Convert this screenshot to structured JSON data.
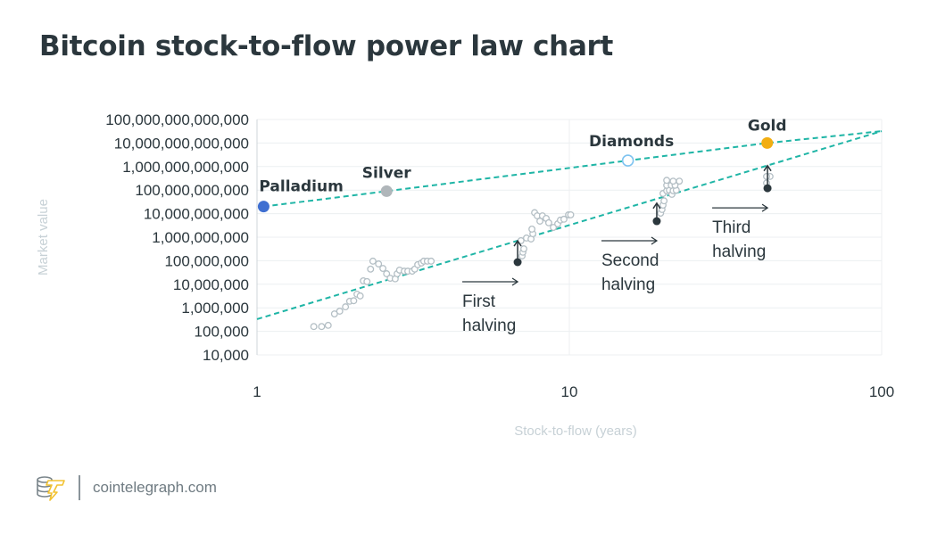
{
  "title": "Bitcoin stock-to-flow power law chart",
  "footer": {
    "logo": "cointelegraph",
    "site": "cointelegraph.com"
  },
  "chart_data": {
    "type": "scatter",
    "title": "Bitcoin stock-to-flow power law chart",
    "xlabel": "Stock-to-flow (years)",
    "ylabel": "Market value",
    "xscale": "log",
    "yscale": "log",
    "xlim": [
      1,
      100
    ],
    "ylim": [
      10000,
      100000000000000
    ],
    "grid": true,
    "xticks": [
      {
        "v": 1,
        "label": "1"
      },
      {
        "v": 10,
        "label": "10"
      },
      {
        "v": 100,
        "label": "100"
      }
    ],
    "yticks": [
      {
        "v": 10000.0,
        "label": "10,000"
      },
      {
        "v": 100000.0,
        "label": "100,000"
      },
      {
        "v": 1000000.0,
        "label": "1,000,000"
      },
      {
        "v": 10000000.0,
        "label": "10,000,000"
      },
      {
        "v": 100000000.0,
        "label": "100,000,000"
      },
      {
        "v": 1000000000.0,
        "label": "1,000,000,000"
      },
      {
        "v": 10000000000.0,
        "label": "10,000,000,000"
      },
      {
        "v": 100000000000.0,
        "label": "100,000,000,000"
      },
      {
        "v": 1000000000000.0,
        "label": "1,000,000,000,000"
      },
      {
        "v": 10000000000000.0,
        "label": "10,000,000,000,000"
      },
      {
        "v": 100000000000000.0,
        "label": "100,000,000,000,000"
      }
    ],
    "colors": {
      "trend": "#1fb5a6",
      "bitcoin": "#b4bfc5",
      "halving": "#2b373d",
      "palladium": "#3f6fd1",
      "silver": "#b0b6ba",
      "diamonds": "#7ec3f0",
      "gold": "#f2ae12",
      "text": "#2b373d",
      "axis_label": "#c7d1d6"
    },
    "commodities": [
      {
        "name": "Palladium",
        "x": 1.05,
        "y": 20000000000.0,
        "style": "filled",
        "color": "#3f6fd1"
      },
      {
        "name": "Silver",
        "x": 2.6,
        "y": 90000000000.0,
        "style": "filled",
        "color": "#b0b6ba"
      },
      {
        "name": "Diamonds",
        "x": 15.4,
        "y": 1800000000000.0,
        "style": "hollow",
        "color": "#7ec3f0"
      },
      {
        "name": "Gold",
        "x": 43,
        "y": 10000000000000.0,
        "style": "filled",
        "color": "#f2ae12"
      }
    ],
    "trend_lines": [
      {
        "points": [
          [
            1.05,
            20000000000.0
          ],
          [
            2.6,
            90000000000.0
          ],
          [
            15.4,
            1800000000000.0
          ],
          [
            43,
            10000000000000.0
          ],
          [
            100,
            32000000000000.0
          ]
        ]
      },
      {
        "points": [
          [
            1,
            330000.0
          ],
          [
            100,
            32000000000000.0
          ]
        ]
      }
    ],
    "bitcoin_points": [
      [
        1.52,
        160000.0
      ],
      [
        1.61,
        160000.0
      ],
      [
        1.69,
        180000.0
      ],
      [
        1.77,
        550000.0
      ],
      [
        1.84,
        720000.0
      ],
      [
        1.92,
        1100000.0
      ],
      [
        1.98,
        1900000.0
      ],
      [
        2.04,
        2000000.0
      ],
      [
        2.09,
        3800000.0
      ],
      [
        2.14,
        3200000.0
      ],
      [
        2.19,
        14000000.0
      ],
      [
        2.25,
        13000000.0
      ],
      [
        2.31,
        44000000.0
      ],
      [
        2.35,
        96000000.0
      ],
      [
        2.45,
        73000000.0
      ],
      [
        2.53,
        47000000.0
      ],
      [
        2.6,
        28000000.0
      ],
      [
        2.67,
        18000000.0
      ],
      [
        2.77,
        17000000.0
      ],
      [
        2.81,
        28000000.0
      ],
      [
        2.86,
        40000000.0
      ],
      [
        2.96,
        36000000.0
      ],
      [
        3.04,
        36000000.0
      ],
      [
        3.14,
        36000000.0
      ],
      [
        3.2,
        44000000.0
      ],
      [
        3.27,
        68000000.0
      ],
      [
        3.36,
        80000000.0
      ],
      [
        3.42,
        96000000.0
      ],
      [
        3.51,
        96000000.0
      ],
      [
        3.61,
        96000000.0
      ],
      [
        7.06,
        160000000.0
      ],
      [
        7.1,
        230000000.0
      ],
      [
        7.15,
        320000000.0
      ],
      [
        7.0,
        710000000.0
      ],
      [
        7.29,
        920000000.0
      ],
      [
        7.54,
        840000000.0
      ],
      [
        7.64,
        1400000000.0
      ],
      [
        7.59,
        2200000000.0
      ],
      [
        7.74,
        11000000000.0
      ],
      [
        7.89,
        8100000000.0
      ],
      [
        8.05,
        4800000000.0
      ],
      [
        8.2,
        8100000000.0
      ],
      [
        8.43,
        6300000000.0
      ],
      [
        8.59,
        4100000000.0
      ],
      [
        8.89,
        2600000000.0
      ],
      [
        9.18,
        3700000000.0
      ],
      [
        9.36,
        5300000000.0
      ],
      [
        9.61,
        5800000000.0
      ],
      [
        9.94,
        8900000000.0
      ],
      [
        10.1,
        8900000000.0
      ],
      [
        19.6,
        10500000000.0
      ],
      [
        19.8,
        15000000000.0
      ],
      [
        19.95,
        23000000000.0
      ],
      [
        20.1,
        35000000000.0
      ],
      [
        19.95,
        72000000000.0
      ],
      [
        20.5,
        94000000000.0
      ],
      [
        20.9,
        100000000000.0
      ],
      [
        21.3,
        66000000000.0
      ],
      [
        21.5,
        94000000000.0
      ],
      [
        22.0,
        100000000000.0
      ],
      [
        20.5,
        160000000000.0
      ],
      [
        21.2,
        160000000000.0
      ],
      [
        21.8,
        160000000000.0
      ],
      [
        20.5,
        260000000000.0
      ],
      [
        21.5,
        240000000000.0
      ],
      [
        22.5,
        240000000000.0
      ],
      [
        42.8,
        200000000000.0
      ],
      [
        43.9,
        380000000000.0
      ],
      [
        42.8,
        380000000000.0
      ]
    ],
    "halvings": [
      {
        "label_lines": [
          "First",
          "halving"
        ],
        "x": 6.83,
        "y": 87000000.0,
        "y_to": 700000000.0
      },
      {
        "label_lines": [
          "Second",
          "halving"
        ],
        "x": 19.05,
        "y": 4800000000.0,
        "y_to": 28000000000.0
      },
      {
        "label_lines": [
          "Third",
          "halving"
        ],
        "x": 43.1,
        "y": 120000000000.0,
        "y_to": 1100000000000.0
      }
    ]
  }
}
